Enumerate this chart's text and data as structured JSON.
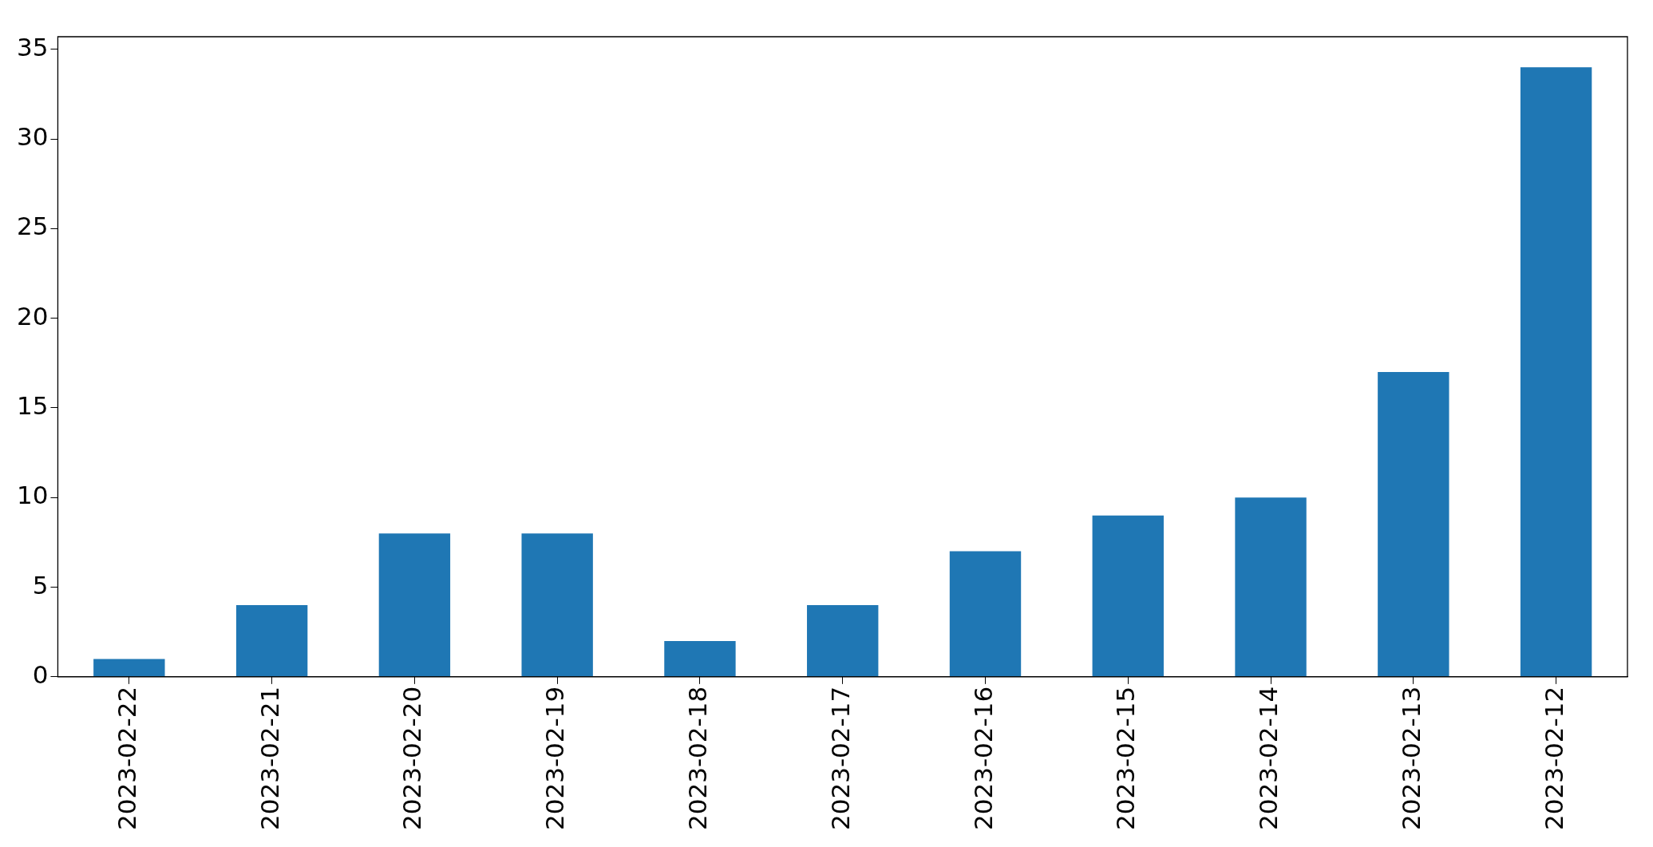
{
  "chart_data": {
    "type": "bar",
    "categories": [
      "2023-02-22",
      "2023-02-21",
      "2023-02-20",
      "2023-02-19",
      "2023-02-18",
      "2023-02-17",
      "2023-02-16",
      "2023-02-15",
      "2023-02-14",
      "2023-02-13",
      "2023-02-12"
    ],
    "values": [
      1,
      4,
      8,
      8,
      2,
      4,
      7,
      9,
      10,
      17,
      34
    ],
    "color": "#1f77b4",
    "ylim": [
      0,
      35.7
    ],
    "yticks": [
      0,
      5,
      10,
      15,
      20,
      25,
      30,
      35
    ],
    "grid": false,
    "legend": false
  }
}
